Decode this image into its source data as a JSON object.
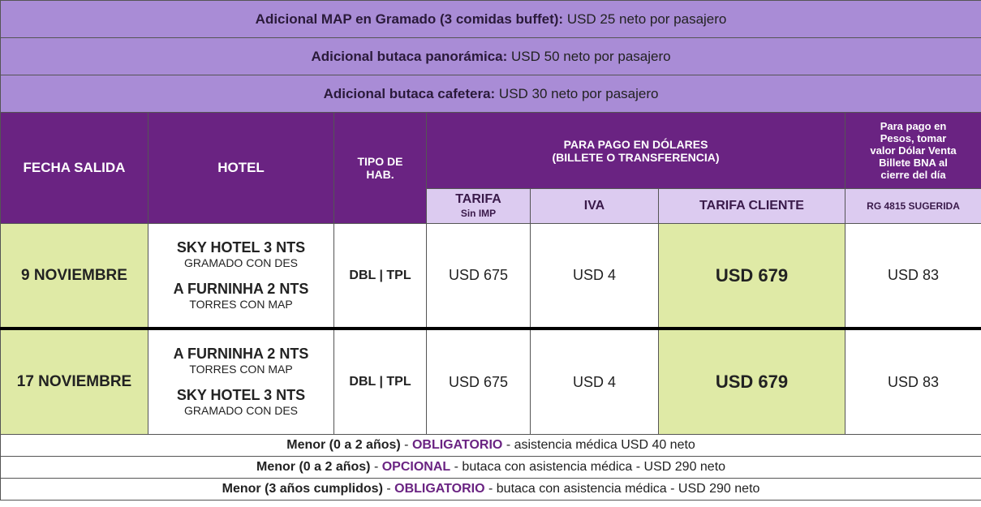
{
  "notes": [
    {
      "label": "Adicional MAP en Gramado (3 comidas buffet):",
      "text": "USD 25 neto por pasajero"
    },
    {
      "label": "Adicional butaca panorámica:",
      "text": "USD 50 neto por pasajero"
    },
    {
      "label": "Adicional butaca cafetera:",
      "text": "USD 30 neto por pasajero"
    }
  ],
  "table": {
    "headers": {
      "date": "FECHA SALIDA",
      "hotel": "HOTEL",
      "room": [
        "TIPO DE",
        "HAB."
      ],
      "dollars": [
        "PARA PAGO EN DÓLARES",
        "(BILLETE O TRANSFERENCIA)"
      ],
      "pesos": [
        "Para pago en",
        "Pesos, tomar",
        "valor Dólar Venta",
        "Billete BNA al",
        "cierre del día"
      ],
      "rate": "TARIFA",
      "rate_sub": "Sin IMP",
      "tax": "IVA",
      "client": "TARIFA CLIENTE",
      "rg": "RG 4815 SUGERIDA"
    },
    "rows": [
      {
        "date": "9 NOVIEMBRE",
        "hotels": [
          {
            "name": "SKY HOTEL 3 NTS",
            "detail": "GRAMADO CON DES"
          },
          {
            "name": "A FURNINHA 2 NTS",
            "detail": "TORRES CON MAP"
          }
        ],
        "room": "DBL | TPL",
        "rate": "USD 675",
        "tax": "USD 4",
        "client": "USD 679",
        "rg": "USD 83"
      },
      {
        "date": "17 NOVIEMBRE",
        "hotels": [
          {
            "name": "A FURNINHA 2 NTS",
            "detail": "TORRES CON MAP"
          },
          {
            "name": "SKY HOTEL 3 NTS",
            "detail": "GRAMADO CON DES"
          }
        ],
        "room": "DBL | TPL",
        "rate": "USD 675",
        "tax": "USD 4",
        "client": "USD 679",
        "rg": "USD 83"
      }
    ]
  },
  "footer": [
    [
      "Menor (0 a 2 años)",
      "-",
      "OBLIGATORIO",
      "-",
      "asistencia médica USD 40 neto"
    ],
    [
      "Menor (0 a 2 años)",
      "-",
      "OPCIONAL",
      "-",
      "butaca con asistencia médica - USD 290 neto"
    ],
    [
      "Menor (3 años cumplidos)",
      "-",
      "OBLIGATORIO",
      "-",
      "butaca con asistencia médica - USD 290 neto"
    ]
  ]
}
